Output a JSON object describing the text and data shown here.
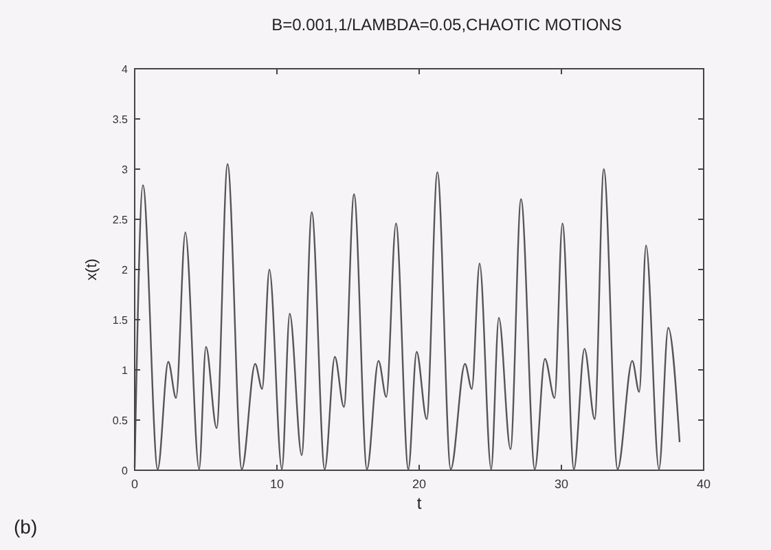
{
  "chart_data": {
    "type": "line",
    "title": "B=0.001,1/LAMBDA=0.05,CHAOTIC MOTIONS",
    "xlabel": "t",
    "ylabel": "x(t)",
    "annotations": [
      "(b)"
    ],
    "xlim": [
      0,
      40
    ],
    "xticks": [
      0,
      10,
      20,
      30,
      40
    ],
    "ylim": [
      0,
      4
    ],
    "yticks": [
      0,
      0.5,
      1,
      1.5,
      2,
      2.5,
      3,
      3.5,
      4
    ],
    "grid": false,
    "marker": "none",
    "line_style": "solid",
    "series": [
      {
        "color": "#555555",
        "x": [
          0,
          0.58,
          1.62,
          2.36,
          2.91,
          3.56,
          4.53,
          5.01,
          5.76,
          6.53,
          7.53,
          8.47,
          8.96,
          9.47,
          10.35,
          10.9,
          11.74,
          12.45,
          13.36,
          14.07,
          14.71,
          15.42,
          16.33,
          17.14,
          17.69,
          18.37,
          19.24,
          19.82,
          20.53,
          21.28,
          22.22,
          23.22,
          23.7,
          24.25,
          25.06,
          25.6,
          26.42,
          27.16,
          28.13,
          28.84,
          29.52,
          30.07,
          30.88,
          31.62,
          32.34,
          32.98,
          33.95,
          34.98,
          35.47,
          35.95,
          36.86,
          37.51,
          38.31
        ],
        "values": [
          0.03,
          2.84,
          0.01,
          1.08,
          0.72,
          2.37,
          0.01,
          1.23,
          0.42,
          3.05,
          0.01,
          1.06,
          0.81,
          2.0,
          0.01,
          1.56,
          0.15,
          2.57,
          0.01,
          1.13,
          0.63,
          2.75,
          0.01,
          1.09,
          0.73,
          2.46,
          0.01,
          1.18,
          0.51,
          2.97,
          0.01,
          1.06,
          0.81,
          2.06,
          0.01,
          1.52,
          0.21,
          2.7,
          0.01,
          1.11,
          0.72,
          2.46,
          0.01,
          1.21,
          0.51,
          3.0,
          0.01,
          1.09,
          0.78,
          2.24,
          0.01,
          1.42,
          0.28
        ]
      }
    ]
  }
}
